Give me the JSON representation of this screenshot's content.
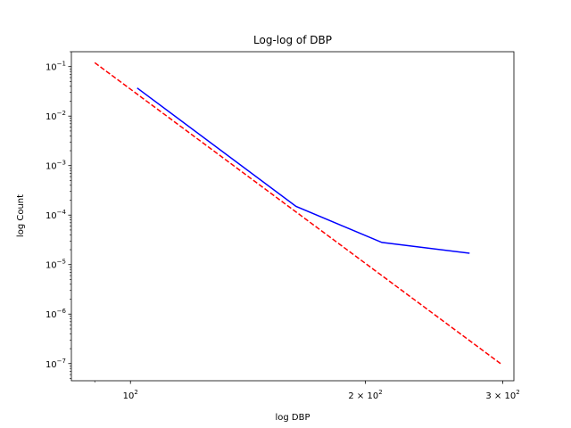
{
  "chart_data": {
    "type": "line",
    "title": "Log-log of DBP",
    "xlabel": "log DBP",
    "ylabel": "log Count",
    "xscale": "log",
    "yscale": "log",
    "xlim": [
      84,
      310
    ],
    "ylim": [
      4.5e-08,
      0.2
    ],
    "grid": false,
    "x_ticks": [
      {
        "value": 100,
        "base": "10",
        "exp": "2"
      },
      {
        "value": 200,
        "base": "2 × 10",
        "exp": "2"
      },
      {
        "value": 300,
        "base": "3 × 10",
        "exp": "2"
      }
    ],
    "y_ticks": [
      {
        "value": 1e-07,
        "base": "10",
        "exp": "−7"
      },
      {
        "value": 1e-06,
        "base": "10",
        "exp": "−6"
      },
      {
        "value": 1e-05,
        "base": "10",
        "exp": "−5"
      },
      {
        "value": 0.0001,
        "base": "10",
        "exp": "−4"
      },
      {
        "value": 0.001,
        "base": "10",
        "exp": "−3"
      },
      {
        "value": 0.01,
        "base": "10",
        "exp": "−2"
      },
      {
        "value": 0.1,
        "base": "10",
        "exp": "−1"
      }
    ],
    "series": [
      {
        "color": "#0000ff",
        "dash": "solid",
        "points": [
          [
            102,
            0.037
          ],
          [
            163,
            0.00015
          ],
          [
            210,
            2.8e-05
          ],
          [
            272,
            1.7e-05
          ]
        ]
      },
      {
        "color": "#ff0000",
        "dash": "dashed",
        "points": [
          [
            90,
            0.12
          ],
          [
            298,
            1e-07
          ]
        ]
      }
    ]
  }
}
